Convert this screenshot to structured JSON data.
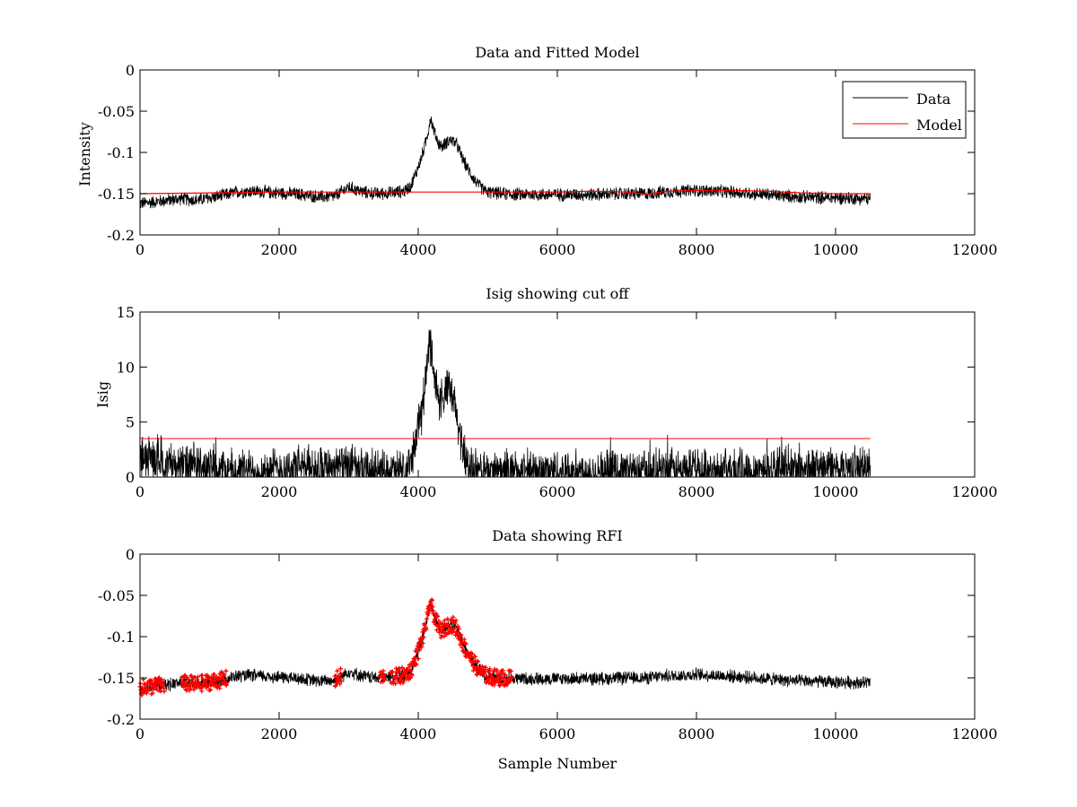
{
  "chart_data": [
    {
      "type": "line",
      "title": "Data and Fitted Model",
      "xlabel": "",
      "ylabel": "Intensity",
      "xlim": [
        0,
        12000
      ],
      "ylim": [
        -0.2,
        0
      ],
      "xticks": [
        0,
        2000,
        4000,
        6000,
        8000,
        10000,
        12000
      ],
      "yticks": [
        -0.2,
        -0.15,
        -0.1,
        -0.05,
        0
      ],
      "xtick_labels": [
        "0",
        "2000",
        "4000",
        "6000",
        "8000",
        "10000",
        "12000"
      ],
      "ytick_labels": [
        "-0.2",
        "-0.15",
        "-0.1",
        "-0.05",
        "0"
      ],
      "legend": {
        "placement": "top-right",
        "entries": [
          "Data",
          "Model"
        ]
      },
      "series": [
        {
          "name": "Data",
          "color": "#000000",
          "style": "noisy-line",
          "x": [
            0,
            200,
            400,
            600,
            800,
            1000,
            1200,
            1400,
            1600,
            1800,
            2000,
            2200,
            2400,
            2600,
            2800,
            2950,
            3000,
            3200,
            3400,
            3600,
            3800,
            3900,
            3950,
            4000,
            4050,
            4100,
            4150,
            4175,
            4200,
            4250,
            4300,
            4350,
            4400,
            4450,
            4500,
            4550,
            4600,
            4650,
            4700,
            4750,
            4800,
            4850,
            4900,
            4950,
            5000,
            5200,
            5400,
            5600,
            5800,
            6000,
            6500,
            7000,
            7300,
            7500,
            8000,
            8500,
            9000,
            9500,
            10000,
            10500
          ],
          "y": [
            -0.162,
            -0.16,
            -0.158,
            -0.156,
            -0.158,
            -0.155,
            -0.152,
            -0.148,
            -0.147,
            -0.148,
            -0.149,
            -0.15,
            -0.152,
            -0.154,
            -0.153,
            -0.145,
            -0.142,
            -0.148,
            -0.15,
            -0.149,
            -0.147,
            -0.14,
            -0.128,
            -0.118,
            -0.105,
            -0.09,
            -0.072,
            -0.057,
            -0.066,
            -0.08,
            -0.09,
            -0.093,
            -0.088,
            -0.085,
            -0.086,
            -0.09,
            -0.1,
            -0.11,
            -0.118,
            -0.125,
            -0.132,
            -0.138,
            -0.142,
            -0.146,
            -0.148,
            -0.15,
            -0.151,
            -0.151,
            -0.151,
            -0.151,
            -0.151,
            -0.15,
            -0.15,
            -0.148,
            -0.146,
            -0.148,
            -0.151,
            -0.154,
            -0.155,
            -0.156
          ],
          "noise_amplitude": 0.007
        },
        {
          "name": "Model",
          "color": "#ff0000",
          "style": "line",
          "x": [
            0,
            1000,
            2000,
            3000,
            4000,
            5000,
            6000,
            6500,
            7000,
            7200,
            7300,
            7400,
            7600,
            8000,
            8500,
            9000,
            9500,
            10000,
            10500
          ],
          "y": [
            -0.15,
            -0.149,
            -0.148,
            -0.148,
            -0.148,
            -0.148,
            -0.148,
            -0.147,
            -0.148,
            -0.15,
            -0.151,
            -0.149,
            -0.147,
            -0.146,
            -0.146,
            -0.147,
            -0.149,
            -0.15,
            -0.15
          ]
        }
      ]
    },
    {
      "type": "line",
      "title": "Isig showing cut off",
      "xlabel": "",
      "ylabel": "Isig",
      "xlim": [
        0,
        12000
      ],
      "ylim": [
        0,
        15
      ],
      "xticks": [
        0,
        2000,
        4000,
        6000,
        8000,
        10000,
        12000
      ],
      "yticks": [
        0,
        5,
        10,
        15
      ],
      "xtick_labels": [
        "0",
        "2000",
        "4000",
        "6000",
        "8000",
        "10000",
        "12000"
      ],
      "ytick_labels": [
        "0",
        "5",
        "10",
        "15"
      ],
      "series": [
        {
          "color": "#000000",
          "style": "noisy-positive",
          "x": [
            0,
            200,
            400,
            600,
            800,
            1000,
            1200,
            1400,
            1600,
            1800,
            2000,
            2400,
            2800,
            3000,
            3200,
            3400,
            3600,
            3800,
            3850,
            3900,
            3950,
            4000,
            4050,
            4100,
            4150,
            4175,
            4200,
            4250,
            4300,
            4350,
            4400,
            4450,
            4500,
            4550,
            4600,
            4650,
            4700,
            4750,
            4800,
            4900,
            5000,
            6000,
            7000,
            8000,
            9000,
            10000,
            10500
          ],
          "y": [
            1.8,
            1.6,
            1.3,
            1.0,
            1.0,
            0.8,
            0.6,
            0.5,
            0.5,
            0.6,
            0.7,
            0.9,
            1.0,
            0.8,
            0.6,
            0.5,
            0.5,
            0.4,
            0.6,
            1.5,
            3.0,
            4.5,
            6.0,
            8.5,
            11.5,
            12.5,
            11.0,
            8.5,
            7.0,
            7.0,
            7.8,
            7.8,
            7.0,
            5.5,
            4.0,
            2.5,
            1.5,
            0.8,
            0.5,
            0.5,
            0.5,
            0.5,
            0.5,
            0.6,
            0.7,
            0.8,
            0.8
          ],
          "noise_amplitude": 1.5
        },
        {
          "color": "#ff0000",
          "style": "line",
          "x": [
            0,
            10500
          ],
          "y": [
            3.5,
            3.5
          ]
        }
      ]
    },
    {
      "type": "line",
      "title": "Data showing RFI",
      "xlabel": "Sample Number",
      "ylabel": "",
      "xlim": [
        0,
        12000
      ],
      "ylim": [
        -0.2,
        0
      ],
      "xticks": [
        0,
        2000,
        4000,
        6000,
        8000,
        10000,
        12000
      ],
      "yticks": [
        -0.2,
        -0.15,
        -0.1,
        -0.05,
        0
      ],
      "xtick_labels": [
        "0",
        "2000",
        "4000",
        "6000",
        "8000",
        "10000",
        "12000"
      ],
      "ytick_labels": [
        "-0.2",
        "-0.15",
        "-0.1",
        "-0.05",
        "0"
      ],
      "series": [
        {
          "color": "#000000",
          "style": "noisy-line",
          "x": [
            0,
            200,
            400,
            600,
            800,
            1000,
            1200,
            1400,
            1600,
            1800,
            2000,
            2200,
            2400,
            2600,
            2800,
            2950,
            3000,
            3200,
            3400,
            3600,
            3800,
            3900,
            3950,
            4000,
            4050,
            4100,
            4150,
            4175,
            4200,
            4250,
            4300,
            4350,
            4400,
            4450,
            4500,
            4550,
            4600,
            4650,
            4700,
            4750,
            4800,
            4850,
            4900,
            4950,
            5000,
            5200,
            5400,
            5600,
            5800,
            6000,
            6500,
            7000,
            7300,
            7500,
            8000,
            8500,
            9000,
            9500,
            10000,
            10500
          ],
          "y": [
            -0.162,
            -0.16,
            -0.158,
            -0.156,
            -0.158,
            -0.155,
            -0.152,
            -0.148,
            -0.147,
            -0.148,
            -0.149,
            -0.15,
            -0.152,
            -0.154,
            -0.153,
            -0.145,
            -0.142,
            -0.148,
            -0.15,
            -0.149,
            -0.147,
            -0.14,
            -0.128,
            -0.118,
            -0.105,
            -0.09,
            -0.072,
            -0.057,
            -0.066,
            -0.08,
            -0.09,
            -0.093,
            -0.088,
            -0.085,
            -0.086,
            -0.09,
            -0.1,
            -0.11,
            -0.118,
            -0.125,
            -0.132,
            -0.138,
            -0.142,
            -0.146,
            -0.148,
            -0.15,
            -0.151,
            -0.151,
            -0.151,
            -0.151,
            -0.151,
            -0.15,
            -0.15,
            -0.148,
            -0.146,
            -0.148,
            -0.151,
            -0.154,
            -0.155,
            -0.156
          ],
          "noise_amplitude": 0.007
        },
        {
          "color": "#ff0000",
          "style": "markers",
          "marker": "+",
          "x_ranges": [
            [
              0,
              350
            ],
            [
              600,
              1250
            ],
            [
              2800,
              2900
            ],
            [
              3450,
              3520
            ],
            [
              3600,
              5350
            ]
          ],
          "noise_amplitude": 0.01
        }
      ]
    }
  ]
}
